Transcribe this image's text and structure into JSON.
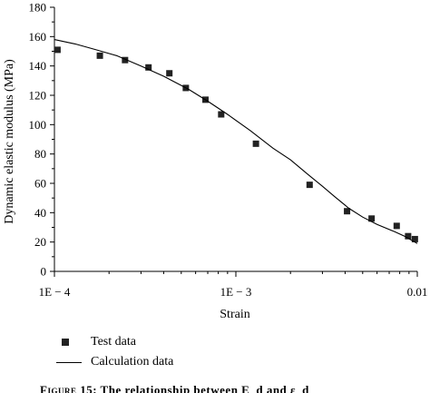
{
  "chart_data": {
    "type": "scatter",
    "ylabel": "Dynamic elastic modulus (MPa)",
    "xlabel": "Strain",
    "x_scale": "log",
    "xlim": [
      0.0001,
      0.01
    ],
    "ylim": [
      0,
      180
    ],
    "x_ticks": [
      {
        "value": 0.0001,
        "label": "1E − 4"
      },
      {
        "value": 0.001,
        "label": "1E − 3"
      },
      {
        "value": 0.01,
        "label": "0.01"
      }
    ],
    "y_ticks": [
      0,
      20,
      40,
      60,
      80,
      100,
      120,
      140,
      160,
      180
    ],
    "grid": false,
    "legend_position": "bottom",
    "series": [
      {
        "name": "Test data",
        "kind": "scatter",
        "color": "#222222",
        "marker": "square",
        "points": [
          [
            0.000104,
            151
          ],
          [
            0.000178,
            147
          ],
          [
            0.000245,
            144
          ],
          [
            0.00033,
            139
          ],
          [
            0.00043,
            135
          ],
          [
            0.00053,
            125
          ],
          [
            0.00068,
            117
          ],
          [
            0.00083,
            107
          ],
          [
            0.00129,
            87
          ],
          [
            0.00255,
            59
          ],
          [
            0.0041,
            41
          ],
          [
            0.0056,
            36
          ],
          [
            0.0077,
            31
          ],
          [
            0.0089,
            24
          ],
          [
            0.0097,
            22
          ]
        ]
      },
      {
        "name": "Calculation data",
        "kind": "line",
        "color": "#000000",
        "points": [
          [
            0.0001,
            158
          ],
          [
            0.00013,
            155
          ],
          [
            0.00017,
            151
          ],
          [
            0.00022,
            147
          ],
          [
            0.0003,
            140
          ],
          [
            0.0004,
            133
          ],
          [
            0.00055,
            124
          ],
          [
            0.0007,
            116
          ],
          [
            0.0009,
            107
          ],
          [
            0.0012,
            96
          ],
          [
            0.0016,
            84
          ],
          [
            0.002,
            76
          ],
          [
            0.0025,
            66
          ],
          [
            0.003,
            58
          ],
          [
            0.0035,
            51
          ],
          [
            0.0042,
            43
          ],
          [
            0.005,
            37
          ],
          [
            0.006,
            32
          ],
          [
            0.0075,
            27
          ],
          [
            0.0085,
            24
          ],
          [
            0.01,
            19
          ]
        ]
      }
    ]
  },
  "caption": {
    "prefix": "Figure",
    "text": " 15: The relationship between E_d and ε_d"
  }
}
